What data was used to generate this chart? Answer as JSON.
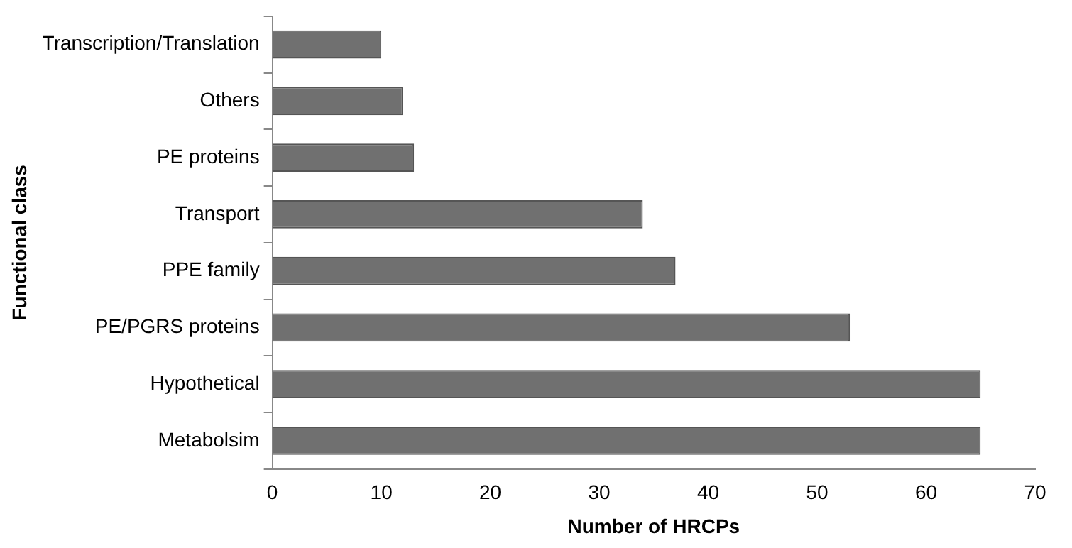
{
  "chart_data": {
    "type": "bar",
    "orientation": "horizontal",
    "xlabel": "Number of HRCPs",
    "ylabel": "Functional class",
    "categories": [
      "Transcription/Translation",
      "Others",
      "PE proteins",
      "Transport",
      "PPE family",
      "PE/PGRS proteins",
      "Hypothetical",
      "Metabolsim"
    ],
    "values": [
      10,
      12,
      13,
      34,
      37,
      53,
      65,
      65
    ],
    "color": "#707070",
    "xlim": [
      0,
      70
    ],
    "xticks": [
      0,
      10,
      20,
      30,
      40,
      50,
      60,
      70
    ],
    "grid": false,
    "legend": false
  }
}
